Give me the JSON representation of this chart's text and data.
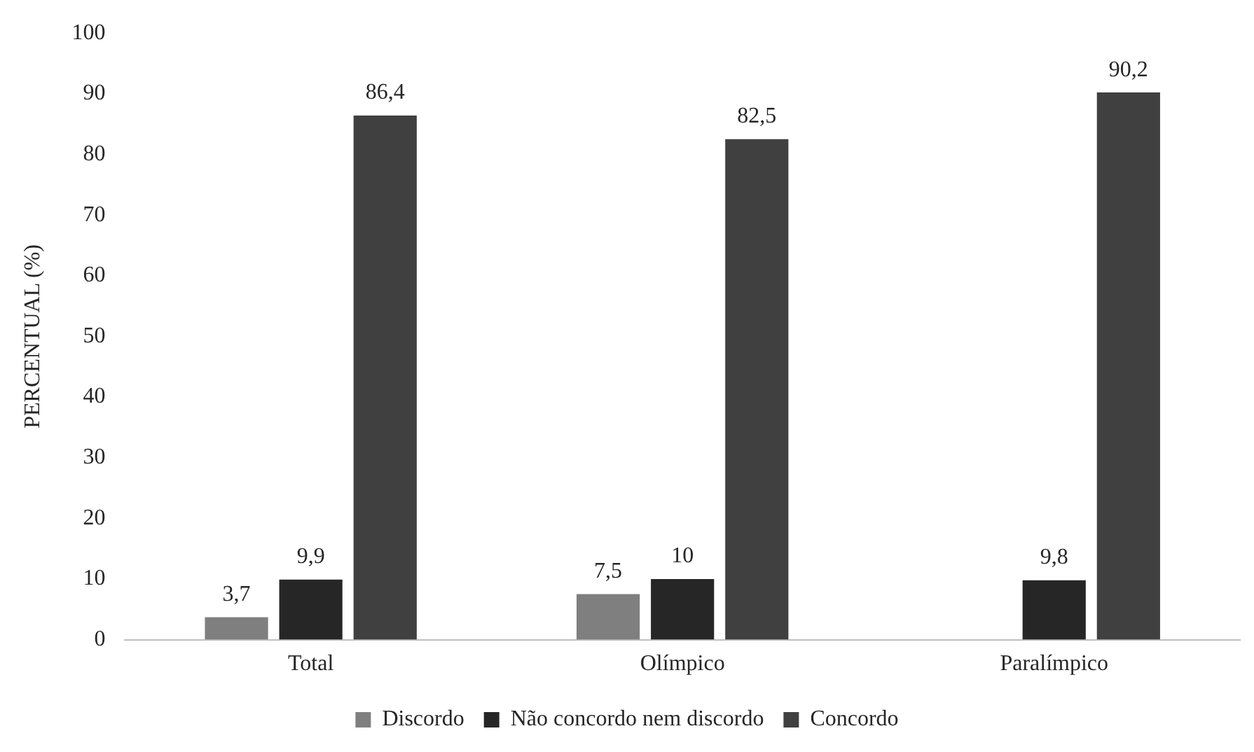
{
  "chart_data": {
    "type": "bar",
    "ylabel": "PERCENTUAL (%)",
    "categories": [
      "Total",
      "Olímpico",
      "Paralímpico"
    ],
    "series": [
      {
        "name": "Discordo",
        "color": "#7f7f7f",
        "values": [
          3.7,
          7.5,
          null
        ],
        "value_labels": [
          "3,7",
          "7,5",
          null
        ]
      },
      {
        "name": "Não concordo nem discordo",
        "color": "#262626",
        "values": [
          9.9,
          10,
          9.8
        ],
        "value_labels": [
          "9,9",
          "10",
          "9,8"
        ]
      },
      {
        "name": "Concordo",
        "color": "#404040",
        "values": [
          86.4,
          82.5,
          90.2
        ],
        "value_labels": [
          "86,4",
          "82,5",
          "90,2"
        ]
      }
    ],
    "ylim": [
      0,
      100
    ],
    "yticks": [
      0,
      10,
      20,
      30,
      40,
      50,
      60,
      70,
      80,
      90,
      100
    ],
    "grid": false,
    "legend": "bottom"
  }
}
